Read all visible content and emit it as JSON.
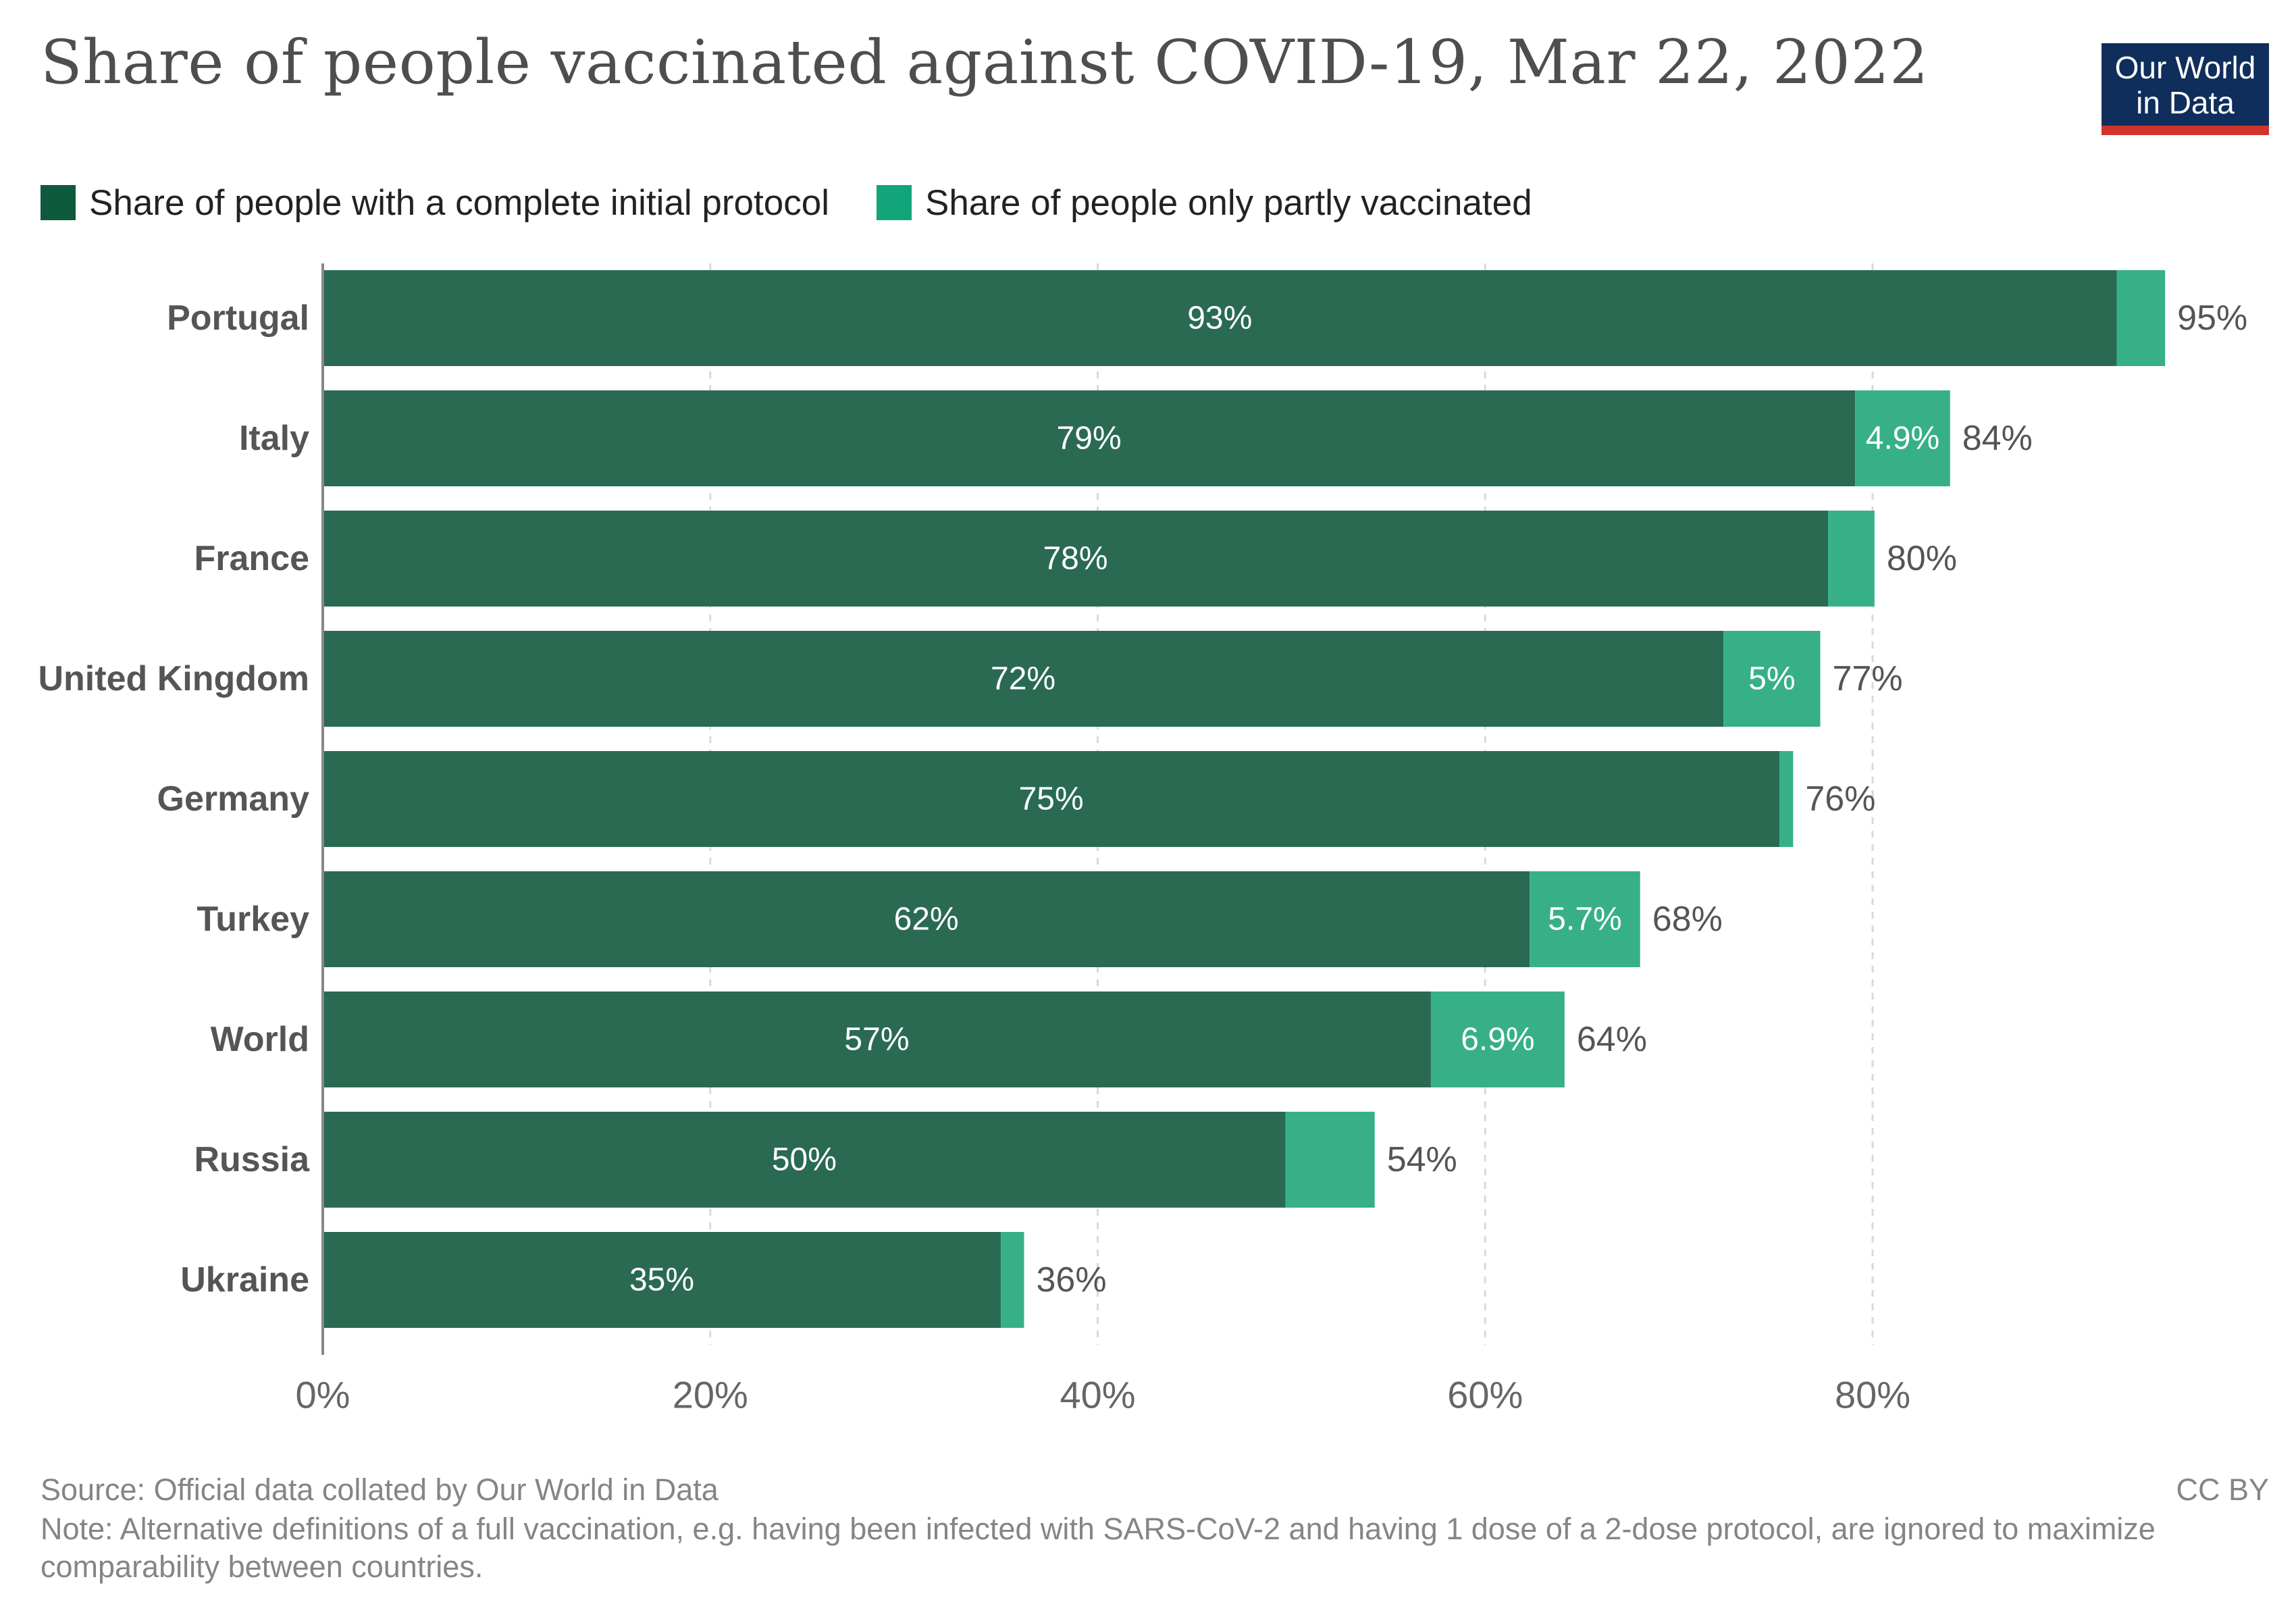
{
  "title": "Share of people vaccinated against COVID-19, Mar 22, 2022",
  "logo": {
    "line1": "Our World",
    "line2": "in Data"
  },
  "legend": [
    {
      "label": "Share of people with a complete initial protocol",
      "color": "#0d5a3c"
    },
    {
      "label": "Share of people only partly vaccinated",
      "color": "#11a579"
    }
  ],
  "colors": {
    "complete": "#2a6a52",
    "partly": "#37b088",
    "axis": "#888888",
    "grid": "#d9d9d9"
  },
  "chart_data": {
    "type": "bar",
    "orientation": "horizontal",
    "stacked": true,
    "categories": [
      "Portugal",
      "Italy",
      "France",
      "United Kingdom",
      "Germany",
      "Turkey",
      "World",
      "Russia",
      "Ukraine"
    ],
    "series": [
      {
        "name": "Share of people with a complete initial protocol",
        "values": [
          92.6,
          79.1,
          77.7,
          72.3,
          75.2,
          62.3,
          57.2,
          49.7,
          35.0
        ]
      },
      {
        "name": "Share of people only partly vaccinated",
        "values": [
          2.5,
          4.9,
          2.4,
          5.0,
          0.7,
          5.7,
          6.9,
          4.6,
          1.2
        ]
      }
    ],
    "segment_labels": [
      [
        "93%",
        ""
      ],
      [
        "79%",
        "4.9%"
      ],
      [
        "78%",
        ""
      ],
      [
        "72%",
        "5%"
      ],
      [
        "75%",
        ""
      ],
      [
        "62%",
        "5.7%"
      ],
      [
        "57%",
        "6.9%"
      ],
      [
        "50%",
        ""
      ],
      [
        "35%",
        ""
      ]
    ],
    "total_labels": [
      "95%",
      "84%",
      "80%",
      "77%",
      "76%",
      "68%",
      "64%",
      "54%",
      "36%"
    ],
    "x_ticks": [
      0,
      20,
      40,
      60,
      80
    ],
    "x_tick_labels": [
      "0%",
      "20%",
      "40%",
      "60%",
      "80%"
    ],
    "xlim": [
      0,
      100
    ],
    "grid": true,
    "legend_position": "top-left"
  },
  "footer": {
    "source": "Source: Official data collated by Our World in Data",
    "license": "CC BY",
    "note": "Note: Alternative definitions of a full vaccination, e.g. having been infected with SARS-CoV-2 and having 1 dose of a 2-dose protocol, are ignored to maximize comparability between countries."
  }
}
